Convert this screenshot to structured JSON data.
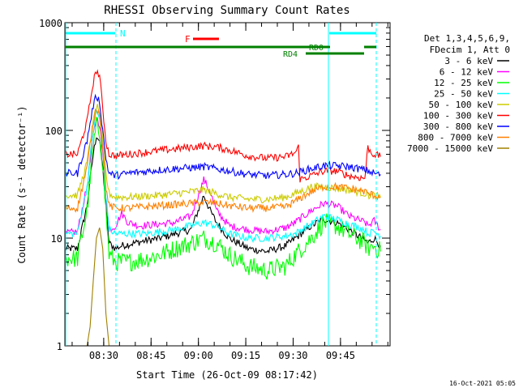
{
  "chart_data": {
    "type": "line",
    "title": "RHESSI Observing Summary Count Rates",
    "xlabel": "Start Time (26-Oct-09 08:17:42)",
    "ylabel": "Count Rate (s⁻¹ detector⁻¹)",
    "ylog": true,
    "ylim": [
      1,
      1000
    ],
    "xlim_minutes": [
      0,
      103
    ],
    "x_ticks": [
      "08:30",
      "08:45",
      "09:00",
      "09:15",
      "09:30",
      "09:45"
    ],
    "x_tick_minutes": [
      12.3,
      27.3,
      42.3,
      57.3,
      72.3,
      87.3
    ],
    "y_ticks": [
      {
        "label": "1",
        "value": 1
      },
      {
        "label": "10",
        "value": 10
      },
      {
        "label": "100",
        "value": 100
      },
      {
        "label": "1000",
        "value": 1000
      }
    ],
    "legend": {
      "position": "right",
      "header": [
        "Det 1,3,4,5,6,9,",
        "FDecim 1, Att 0"
      ]
    },
    "series": [
      {
        "name": "3 - 6 keV",
        "color": "#000000",
        "x": [
          0,
          4,
          7,
          9,
          10,
          11,
          12,
          13,
          14,
          16,
          18,
          22,
          26,
          30,
          35,
          40,
          44,
          46,
          48,
          52,
          58,
          64,
          70,
          73,
          78,
          82,
          86,
          88,
          90,
          95,
          96,
          98,
          100
        ],
        "y": [
          8,
          8,
          20,
          60,
          90,
          80,
          45,
          20,
          9,
          8,
          8.5,
          9,
          9.5,
          10,
          11,
          12,
          25,
          18,
          14,
          10,
          8,
          7.5,
          8.5,
          10,
          13,
          15,
          14,
          13,
          12,
          9.5,
          9,
          10,
          8.5
        ]
      },
      {
        "name": "6 - 12 keV",
        "color": "#ff00ff",
        "x": [
          0,
          4,
          7,
          9,
          10,
          11,
          12,
          13,
          14,
          16,
          18,
          20,
          24,
          30,
          35,
          40,
          44,
          46,
          48,
          52,
          58,
          64,
          70,
          73,
          78,
          82,
          86,
          88,
          90,
          95,
          96,
          98,
          100
        ],
        "y": [
          11,
          11.5,
          30,
          90,
          130,
          115,
          60,
          25,
          12,
          13,
          17,
          14,
          13,
          13.5,
          14,
          16,
          35,
          27,
          18,
          13,
          12,
          11.5,
          12.5,
          14,
          18,
          21,
          20,
          18,
          16,
          14,
          13,
          14.5,
          12
        ]
      },
      {
        "name": "12 - 25 keV",
        "color": "#00ff00",
        "x": [
          0,
          4,
          7,
          9,
          10,
          11,
          12,
          13,
          14,
          16,
          20,
          26,
          30,
          35,
          40,
          44,
          48,
          52,
          58,
          64,
          70,
          73,
          78,
          82,
          86,
          90,
          95,
          96,
          98,
          100
        ],
        "y": [
          6.5,
          6.5,
          18,
          70,
          110,
          95,
          50,
          18,
          7,
          6,
          6,
          6.5,
          7,
          8,
          9,
          10,
          9,
          7,
          5.5,
          5,
          5.5,
          7,
          10,
          14,
          13,
          11,
          9,
          8,
          8.5,
          7.5
        ]
      },
      {
        "name": "25 - 50 keV",
        "color": "#00ffff",
        "x": [
          0,
          4,
          7,
          9,
          10,
          11,
          12,
          13,
          14,
          16,
          20,
          26,
          30,
          35,
          40,
          44,
          48,
          52,
          58,
          64,
          70,
          73,
          78,
          82,
          86,
          90,
          95,
          96,
          98,
          100
        ],
        "y": [
          11,
          11,
          30,
          100,
          150,
          130,
          70,
          25,
          12,
          11,
          11,
          11,
          11.5,
          12,
          13,
          14,
          13,
          11,
          10,
          10,
          10.5,
          11,
          13.5,
          16,
          15,
          13.5,
          12,
          11,
          11.5,
          10.5
        ]
      },
      {
        "name": "50 - 100 keV",
        "color": "#cccc00",
        "x": [
          0,
          4,
          7,
          9,
          10,
          11,
          12,
          13,
          14,
          16,
          20,
          30,
          40,
          44,
          48,
          52,
          58,
          64,
          70,
          73,
          76,
          78,
          82,
          86,
          90,
          95,
          96,
          98,
          100
        ],
        "y": [
          25,
          25,
          50,
          120,
          170,
          150,
          80,
          40,
          26,
          24,
          24,
          25,
          27,
          28,
          26,
          24,
          23,
          23,
          24,
          26,
          28,
          30,
          30,
          29,
          28,
          26,
          25,
          25,
          24
        ]
      },
      {
        "name": "100 - 300 keV",
        "color": "#ff0000",
        "x": [
          0,
          4,
          7,
          9,
          10,
          11,
          12,
          13,
          14,
          16,
          20,
          30,
          40,
          44,
          48,
          52,
          58,
          64,
          70,
          73,
          74,
          74.5,
          78,
          82,
          86,
          90,
          92,
          95,
          96,
          97,
          98,
          100
        ],
        "y": [
          60,
          60,
          120,
          280,
          360,
          320,
          160,
          80,
          60,
          58,
          60,
          65,
          70,
          72,
          70,
          66,
          58,
          55,
          57,
          62,
          70,
          35,
          38,
          42,
          42,
          38,
          37,
          36,
          70,
          62,
          60,
          57
        ]
      },
      {
        "name": "300 - 800 keV",
        "color": "#0000ff",
        "x": [
          0,
          4,
          7,
          9,
          10,
          11,
          12,
          13,
          14,
          16,
          20,
          30,
          40,
          44,
          48,
          52,
          58,
          64,
          70,
          73,
          78,
          82,
          86,
          90,
          95,
          96,
          98,
          100
        ],
        "y": [
          40,
          40,
          80,
          170,
          210,
          185,
          100,
          55,
          40,
          38,
          40,
          43,
          45,
          46,
          44,
          42,
          39,
          38,
          39,
          40,
          44,
          47,
          47,
          46,
          43,
          42,
          40,
          39
        ]
      },
      {
        "name": "800 - 7000 keV",
        "color": "#ff8000",
        "x": [
          0,
          4,
          7,
          9,
          10,
          11,
          12,
          13,
          14,
          16,
          20,
          30,
          40,
          44,
          48,
          52,
          58,
          64,
          70,
          73,
          78,
          82,
          86,
          90,
          95,
          96,
          98,
          100
        ],
        "y": [
          19,
          19,
          45,
          120,
          165,
          140,
          70,
          30,
          20,
          19,
          19,
          20,
          21,
          21.5,
          21,
          20,
          19,
          19,
          19.5,
          22,
          27,
          30,
          30,
          29,
          27,
          26,
          25,
          24
        ]
      },
      {
        "name": "7000 - 15000 keV",
        "color": "#a08000",
        "x": [
          7,
          8,
          9,
          10,
          11,
          12,
          13,
          14
        ],
        "y": [
          1,
          1.5,
          4,
          10,
          12.5,
          8,
          2,
          1
        ]
      }
    ],
    "annotations": [
      {
        "label": "N",
        "color": "#00ffff"
      },
      {
        "label": "F",
        "color": "#ff0000"
      },
      {
        "label": "RD0",
        "color": "#008000"
      },
      {
        "label": "RD4",
        "color": "#008000"
      }
    ]
  },
  "footer": {
    "timestamp": "16-Oct-2021 05:05"
  }
}
